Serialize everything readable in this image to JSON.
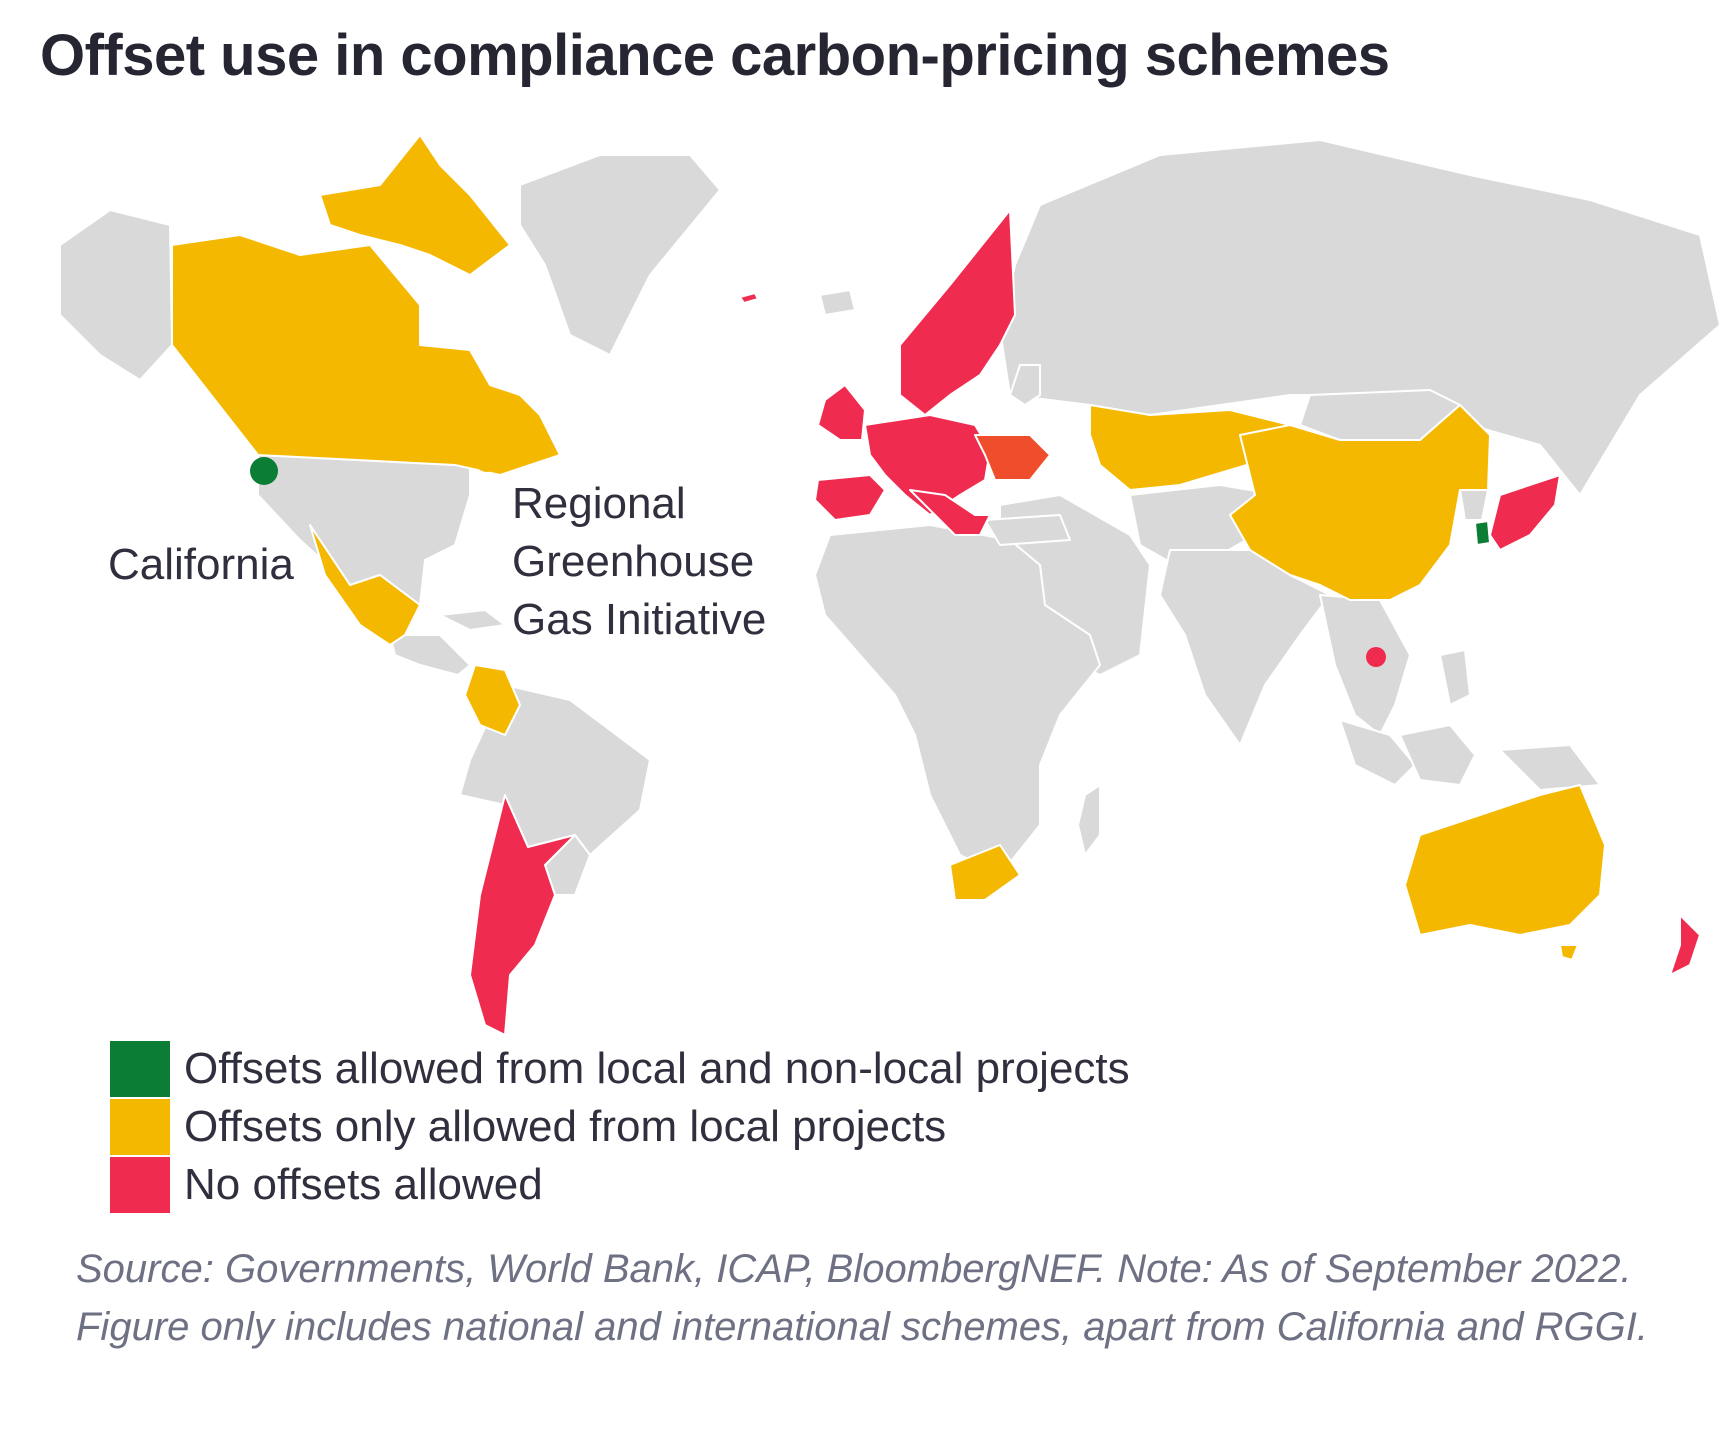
{
  "title": "Offset use in compliance carbon-pricing schemes",
  "colors": {
    "local_and_nonlocal": "#0b7d34",
    "local_only": "#f5b800",
    "none": "#ef2b4f",
    "no_scheme": "#d9d9d9",
    "border": "#ffffff"
  },
  "callouts": {
    "california": "California",
    "rggi_line1": "Regional",
    "rggi_line2": "Greenhouse",
    "rggi_line3": "Gas Initiative"
  },
  "legend": [
    {
      "label": "Offsets allowed from local and non-local projects",
      "color": "#0b7d34"
    },
    {
      "label": "Offsets only allowed from local projects",
      "color": "#f5b800"
    },
    {
      "label": "No offsets allowed",
      "color": "#ef2b4f"
    }
  ],
  "source_note": "Source: Governments, World Bank, ICAP, BloombergNEF. Note: As of September 2022. Figure only includes national and international schemes, apart from California and RGGI."
}
